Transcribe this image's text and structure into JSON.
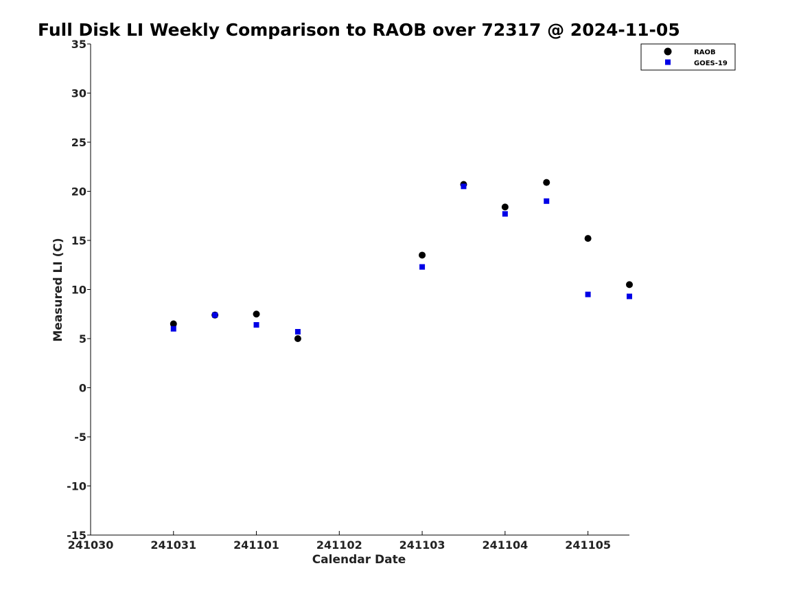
{
  "chart_data": {
    "type": "scatter",
    "title": "Full Disk LI Weekly Comparison to RAOB over 72317 @ 2024-11-05",
    "xlabel": "Calendar Date",
    "ylabel": "Measured LI (C)",
    "x_ticks": [
      "241030",
      "241031",
      "241101",
      "241102",
      "241103",
      "241104",
      "241105"
    ],
    "y_ticks": [
      35,
      30,
      25,
      20,
      15,
      10,
      5,
      0,
      -5,
      -10,
      -15
    ],
    "ylim": [
      -15,
      35
    ],
    "xlim": [
      "2024-10-30 00:00",
      "2024-11-05 12:00"
    ],
    "grid": false,
    "legend_position": "top-right",
    "series": [
      {
        "name": "RAOB",
        "marker": "circle",
        "color": "#000000",
        "points": [
          {
            "x": "2024-10-31 00:00",
            "y": 6.5
          },
          {
            "x": "2024-10-31 12:00",
            "y": 7.4
          },
          {
            "x": "2024-11-01 00:00",
            "y": 7.5
          },
          {
            "x": "2024-11-01 12:00",
            "y": 5.0
          },
          {
            "x": "2024-11-03 00:00",
            "y": 13.5
          },
          {
            "x": "2024-11-03 12:00",
            "y": 20.7
          },
          {
            "x": "2024-11-04 00:00",
            "y": 18.4
          },
          {
            "x": "2024-11-04 12:00",
            "y": 20.9
          },
          {
            "x": "2024-11-05 00:00",
            "y": 15.2
          },
          {
            "x": "2024-11-05 12:00",
            "y": 10.5
          }
        ]
      },
      {
        "name": "GOES-19",
        "marker": "square",
        "color": "#0000e6",
        "points": [
          {
            "x": "2024-10-31 00:00",
            "y": 6.0
          },
          {
            "x": "2024-10-31 12:00",
            "y": 7.4
          },
          {
            "x": "2024-11-01 00:00",
            "y": 6.4
          },
          {
            "x": "2024-11-01 12:00",
            "y": 5.7
          },
          {
            "x": "2024-11-03 00:00",
            "y": 12.3
          },
          {
            "x": "2024-11-03 12:00",
            "y": 20.5
          },
          {
            "x": "2024-11-04 00:00",
            "y": 17.7
          },
          {
            "x": "2024-11-04 12:00",
            "y": 19.0
          },
          {
            "x": "2024-11-05 00:00",
            "y": 9.5
          },
          {
            "x": "2024-11-05 12:00",
            "y": 9.3
          }
        ]
      }
    ]
  }
}
